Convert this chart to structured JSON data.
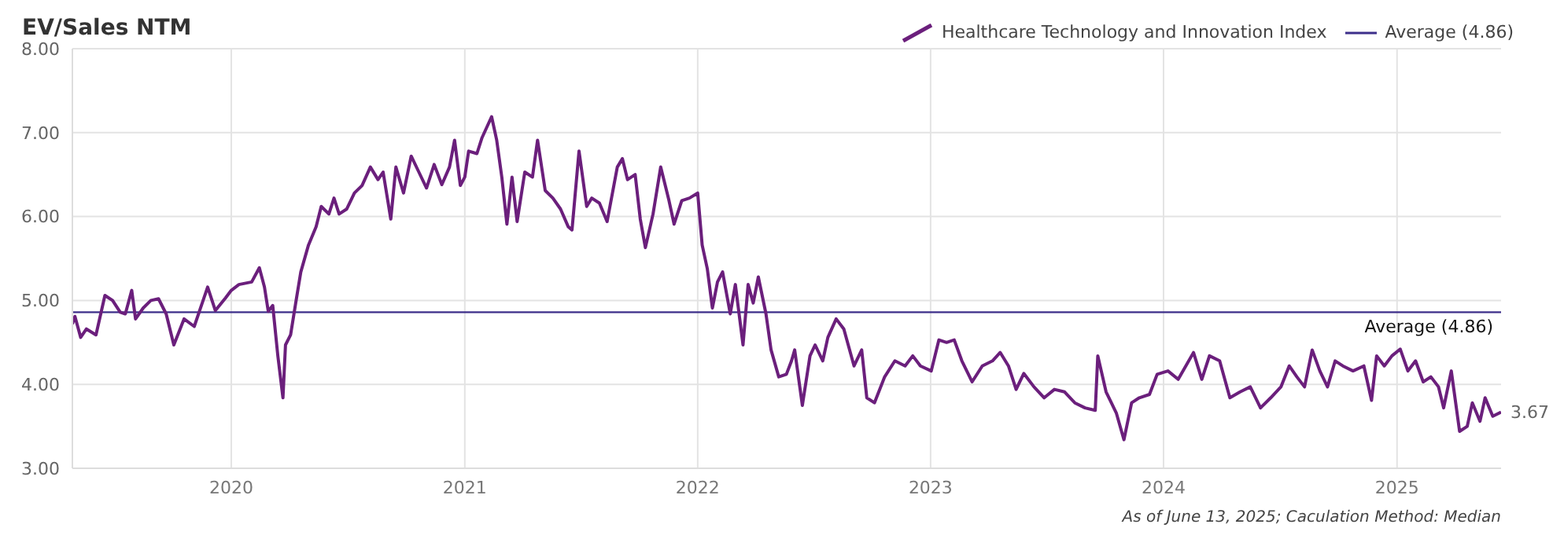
{
  "chart_data": {
    "type": "line",
    "title": "EV/Sales NTM",
    "annotations": [
      {
        "text": "3.67",
        "x": "2025-06-13",
        "y": 3.67
      },
      "As of June 13, 2025; Caculation Method: Median"
    ],
    "x": [
      "2019-04-27",
      "2019-05-01",
      "2019-05-10",
      "2019-05-19",
      "2019-06-03",
      "2019-06-17",
      "2019-06-29",
      "2019-07-11",
      "2019-07-19",
      "2019-07-29",
      "2019-08-04",
      "2019-08-16",
      "2019-08-28",
      "2019-09-09",
      "2019-09-21",
      "2019-10-03",
      "2019-10-19",
      "2019-11-04",
      "2019-11-25",
      "2019-12-07",
      "2019-12-23",
      "2020-01-01",
      "2020-01-13",
      "2020-02-02",
      "2020-02-14",
      "2020-02-22",
      "2020-02-28",
      "2020-03-06",
      "2020-03-14",
      "2020-03-22",
      "2020-03-26",
      "2020-04-03",
      "2020-04-11",
      "2020-04-19",
      "2020-05-01",
      "2020-05-13",
      "2020-05-21",
      "2020-06-02",
      "2020-06-10",
      "2020-06-18",
      "2020-06-30",
      "2020-07-12",
      "2020-07-24",
      "2020-08-06",
      "2020-08-18",
      "2020-08-26",
      "2020-09-07",
      "2020-09-15",
      "2020-09-27",
      "2020-10-09",
      "2020-10-21",
      "2020-11-02",
      "2020-11-14",
      "2020-11-26",
      "2020-12-08",
      "2020-12-16",
      "2020-12-25",
      "2021-01-01",
      "2021-01-07",
      "2021-01-20",
      "2021-01-28",
      "2021-02-12",
      "2021-02-20",
      "2021-02-28",
      "2021-03-08",
      "2021-03-16",
      "2021-03-24",
      "2021-04-05",
      "2021-04-17",
      "2021-04-25",
      "2021-05-07",
      "2021-05-19",
      "2021-05-31",
      "2021-06-12",
      "2021-06-18",
      "2021-06-29",
      "2021-07-11",
      "2021-07-19",
      "2021-07-31",
      "2021-08-12",
      "2021-08-28",
      "2021-09-05",
      "2021-09-13",
      "2021-09-25",
      "2021-10-03",
      "2021-10-11",
      "2021-10-23",
      "2021-11-04",
      "2021-11-17",
      "2021-11-25",
      "2021-12-07",
      "2021-12-19",
      "2022-01-01",
      "2022-01-08",
      "2022-01-16",
      "2022-01-24",
      "2022-02-01",
      "2022-02-09",
      "2022-02-21",
      "2022-03-01",
      "2022-03-13",
      "2022-03-21",
      "2022-03-29",
      "2022-04-06",
      "2022-04-18",
      "2022-04-26",
      "2022-05-08",
      "2022-05-20",
      "2022-05-28",
      "2022-06-02",
      "2022-06-14",
      "2022-06-26",
      "2022-07-04",
      "2022-07-16",
      "2022-07-24",
      "2022-08-06",
      "2022-08-18",
      "2022-09-03",
      "2022-09-15",
      "2022-09-23",
      "2022-10-05",
      "2022-10-21",
      "2022-11-06",
      "2022-11-22",
      "2022-12-04",
      "2022-12-16",
      "2023-01-02",
      "2023-01-14",
      "2023-01-26",
      "2023-02-07",
      "2023-02-19",
      "2023-03-07",
      "2023-03-23",
      "2023-04-08",
      "2023-04-20",
      "2023-05-03",
      "2023-05-15",
      "2023-05-27",
      "2023-06-12",
      "2023-06-28",
      "2023-07-14",
      "2023-07-30",
      "2023-08-15",
      "2023-08-31",
      "2023-09-16",
      "2023-09-20",
      "2023-10-03",
      "2023-10-19",
      "2023-10-31",
      "2023-11-12",
      "2023-11-24",
      "2023-12-10",
      "2023-12-22",
      "2024-01-08",
      "2024-01-24",
      "2024-02-05",
      "2024-02-17",
      "2024-03-01",
      "2024-03-13",
      "2024-03-29",
      "2024-04-14",
      "2024-04-30",
      "2024-05-16",
      "2024-06-01",
      "2024-06-17",
      "2024-07-03",
      "2024-07-16",
      "2024-07-28",
      "2024-08-09",
      "2024-08-21",
      "2024-09-02",
      "2024-09-14",
      "2024-09-26",
      "2024-10-08",
      "2024-10-24",
      "2024-11-10",
      "2024-11-22",
      "2024-11-30",
      "2024-12-12",
      "2024-12-24",
      "2025-01-06",
      "2025-01-18",
      "2025-01-30",
      "2025-02-11",
      "2025-02-23",
      "2025-03-07",
      "2025-03-15",
      "2025-03-27",
      "2025-04-09",
      "2025-04-21",
      "2025-04-29",
      "2025-05-11",
      "2025-05-19",
      "2025-05-31",
      "2025-06-13"
    ],
    "series": [
      {
        "name": "Healthcare Technology and Innovation Index",
        "color": "#6b1f7c",
        "values": [
          4.72,
          4.81,
          4.56,
          4.66,
          4.59,
          5.06,
          5.0,
          4.86,
          4.84,
          5.12,
          4.78,
          4.91,
          5.0,
          5.02,
          4.84,
          4.47,
          4.78,
          4.69,
          5.16,
          4.88,
          5.03,
          5.12,
          5.19,
          5.22,
          5.39,
          5.16,
          4.87,
          4.94,
          4.34,
          3.84,
          4.47,
          4.59,
          4.97,
          5.34,
          5.66,
          5.88,
          6.12,
          6.03,
          6.22,
          6.03,
          6.09,
          6.28,
          6.37,
          6.59,
          6.44,
          6.53,
          5.97,
          6.59,
          6.28,
          6.72,
          6.53,
          6.34,
          6.62,
          6.38,
          6.59,
          6.91,
          6.37,
          6.47,
          6.78,
          6.75,
          6.94,
          7.19,
          6.91,
          6.47,
          5.91,
          6.47,
          5.94,
          6.53,
          6.47,
          6.91,
          6.31,
          6.22,
          6.09,
          5.88,
          5.84,
          6.78,
          6.12,
          6.22,
          6.16,
          5.94,
          6.59,
          6.69,
          6.44,
          6.5,
          5.97,
          5.63,
          6.03,
          6.59,
          6.19,
          5.91,
          6.19,
          6.22,
          6.28,
          5.66,
          5.38,
          4.91,
          5.22,
          5.34,
          4.84,
          5.19,
          4.47,
          5.19,
          4.97,
          5.28,
          4.84,
          4.41,
          4.09,
          4.12,
          4.28,
          4.41,
          3.75,
          4.34,
          4.47,
          4.28,
          4.56,
          4.78,
          4.66,
          4.22,
          4.41,
          3.84,
          3.78,
          4.09,
          4.28,
          4.22,
          4.34,
          4.22,
          4.16,
          4.53,
          4.5,
          4.53,
          4.28,
          4.03,
          4.22,
          4.28,
          4.38,
          4.22,
          3.94,
          4.13,
          3.97,
          3.84,
          3.94,
          3.91,
          3.78,
          3.72,
          3.69,
          4.34,
          3.91,
          3.66,
          3.34,
          3.78,
          3.84,
          3.88,
          4.12,
          4.16,
          4.06,
          4.22,
          4.38,
          4.06,
          4.34,
          4.28,
          3.84,
          3.91,
          3.97,
          3.72,
          3.84,
          3.97,
          4.22,
          4.09,
          3.97,
          4.41,
          4.16,
          3.97,
          4.28,
          4.22,
          4.16,
          4.22,
          3.81,
          4.34,
          4.22,
          4.34,
          4.42,
          4.16,
          4.28,
          4.03,
          4.09,
          3.97,
          3.72,
          4.16,
          3.44,
          3.5,
          3.78,
          3.56,
          3.84,
          3.62,
          3.67
        ]
      }
    ],
    "ref_lines": [
      {
        "axis": "y",
        "value": 4.86,
        "label": "Average (4.86)",
        "color": "#3c2e8a"
      }
    ],
    "xlim": [
      "2019-04-27",
      "2025-06-13"
    ],
    "xticks": [
      "2020",
      "2021",
      "2022",
      "2023",
      "2024",
      "2025"
    ],
    "ylim": [
      3,
      8
    ],
    "yticks": [
      {
        "value": 3,
        "label": "3.00"
      },
      {
        "value": 4,
        "label": "4.00"
      },
      {
        "value": 5,
        "label": "5.00"
      },
      {
        "value": 6,
        "label": "6.00"
      },
      {
        "value": 7,
        "label": "7.00"
      },
      {
        "value": 8,
        "label": "8.00"
      }
    ],
    "grid": true,
    "legend": "top right",
    "marker": "none",
    "line_style": "solid"
  }
}
